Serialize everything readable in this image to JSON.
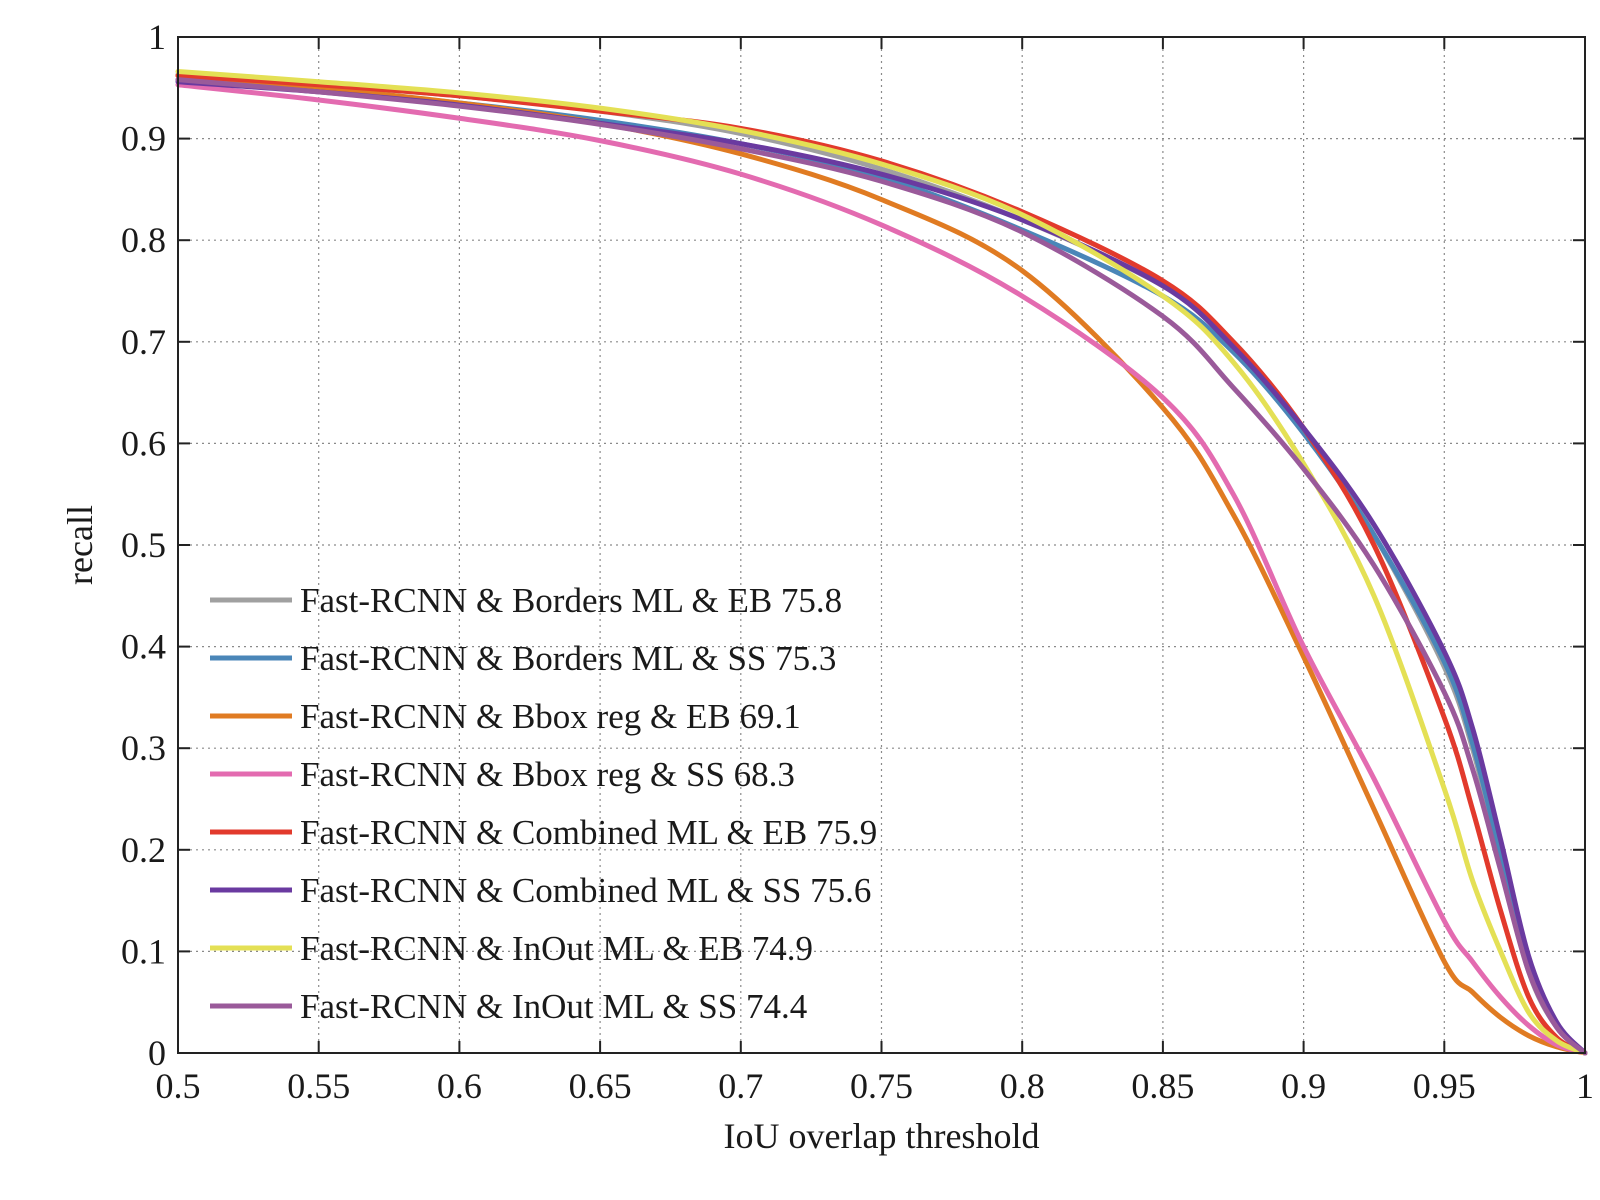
{
  "chart_data": {
    "type": "line",
    "title": "",
    "xlabel": "IoU overlap threshold",
    "ylabel": "recall",
    "xlim": [
      0.5,
      1.0
    ],
    "ylim": [
      0,
      1.0
    ],
    "xticks": [
      0.5,
      0.55,
      0.6,
      0.65,
      0.7,
      0.75,
      0.8,
      0.85,
      0.9,
      0.95,
      1.0
    ],
    "xtick_labels": [
      "0.5",
      "0.55",
      "0.6",
      "0.65",
      "0.7",
      "0.75",
      "0.8",
      "0.85",
      "0.9",
      "0.95",
      "1"
    ],
    "yticks": [
      0,
      0.1,
      0.2,
      0.3,
      0.4,
      0.5,
      0.6,
      0.7,
      0.8,
      0.9,
      1.0
    ],
    "ytick_labels": [
      "0",
      "0.1",
      "0.2",
      "0.3",
      "0.4",
      "0.5",
      "0.6",
      "0.7",
      "0.8",
      "0.9",
      "1"
    ],
    "grid": true,
    "legend_position": "bottom-left",
    "x": [
      0.5,
      0.55,
      0.6,
      0.65,
      0.7,
      0.75,
      0.8,
      0.85,
      0.875,
      0.9,
      0.925,
      0.95,
      0.96,
      0.97,
      0.98,
      0.99,
      1.0
    ],
    "series": [
      {
        "name": "Fast-RCNN & Borders ML & EB 75.8",
        "color": "#a0a0a0",
        "values": [
          0.963,
          0.953,
          0.942,
          0.927,
          0.905,
          0.87,
          0.82,
          0.755,
          0.7,
          0.615,
          0.51,
          0.38,
          0.3,
          0.19,
          0.08,
          0.025,
          0.0
        ]
      },
      {
        "name": "Fast-RCNN & Borders ML & SS 75.3",
        "color": "#4a86b8",
        "values": [
          0.958,
          0.948,
          0.935,
          0.918,
          0.895,
          0.862,
          0.81,
          0.745,
          0.69,
          0.61,
          0.51,
          0.385,
          0.305,
          0.195,
          0.085,
          0.028,
          0.0
        ]
      },
      {
        "name": "Fast-RCNN & Bbox reg & EB 69.1",
        "color": "#e07b22",
        "values": [
          0.962,
          0.95,
          0.935,
          0.915,
          0.885,
          0.84,
          0.77,
          0.635,
          0.53,
          0.39,
          0.24,
          0.09,
          0.06,
          0.035,
          0.017,
          0.006,
          0.0
        ]
      },
      {
        "name": "Fast-RCNN & Bbox reg & SS 68.3",
        "color": "#e36bb0",
        "values": [
          0.953,
          0.938,
          0.92,
          0.898,
          0.865,
          0.815,
          0.745,
          0.645,
          0.55,
          0.4,
          0.27,
          0.13,
          0.09,
          0.055,
          0.027,
          0.008,
          0.0
        ]
      },
      {
        "name": "Fast-RCNN & Combined ML & EB 75.9",
        "color": "#e23a2c",
        "values": [
          0.962,
          0.953,
          0.942,
          0.927,
          0.91,
          0.878,
          0.828,
          0.76,
          0.7,
          0.615,
          0.5,
          0.33,
          0.24,
          0.14,
          0.055,
          0.015,
          0.0
        ]
      },
      {
        "name": "Fast-RCNN & Combined ML & SS 75.6",
        "color": "#6a3aa0",
        "values": [
          0.956,
          0.946,
          0.933,
          0.915,
          0.895,
          0.865,
          0.82,
          0.755,
          0.695,
          0.615,
          0.52,
          0.395,
          0.32,
          0.21,
          0.095,
          0.03,
          0.0
        ]
      },
      {
        "name": "Fast-RCNN & InOut ML & EB 74.9",
        "color": "#e4e055",
        "values": [
          0.966,
          0.956,
          0.945,
          0.93,
          0.908,
          0.875,
          0.825,
          0.745,
          0.68,
          0.58,
          0.45,
          0.26,
          0.17,
          0.1,
          0.04,
          0.012,
          0.0
        ]
      },
      {
        "name": "Fast-RCNN & InOut ML & SS 74.4",
        "color": "#9a5a9a",
        "values": [
          0.958,
          0.946,
          0.932,
          0.914,
          0.89,
          0.858,
          0.808,
          0.725,
          0.655,
          0.575,
          0.48,
          0.355,
          0.28,
          0.18,
          0.08,
          0.025,
          0.0
        ]
      }
    ]
  }
}
